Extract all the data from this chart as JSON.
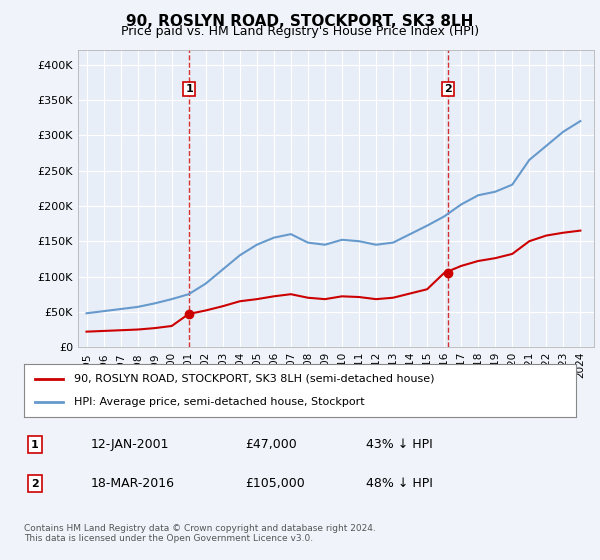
{
  "title": "90, ROSLYN ROAD, STOCKPORT, SK3 8LH",
  "subtitle": "Price paid vs. HM Land Registry's House Price Index (HPI)",
  "xlabel": "",
  "ylabel": "",
  "ylim": [
    0,
    420000
  ],
  "yticks": [
    0,
    50000,
    100000,
    150000,
    200000,
    250000,
    300000,
    350000,
    400000
  ],
  "ytick_labels": [
    "£0",
    "£50K",
    "£100K",
    "£150K",
    "£200K",
    "£250K",
    "£300K",
    "£350K",
    "£400K"
  ],
  "background_color": "#e8eef7",
  "plot_bg_color": "#e8eef7",
  "grid_color": "#ffffff",
  "red_line_color": "#cc0000",
  "blue_line_color": "#6699cc",
  "marker_color": "#cc0000",
  "annotation_box_color": "#cc0000",
  "annotation_line_color": "#cc0000",
  "sale1_date_idx": 6.08,
  "sale1_price": 47000,
  "sale1_label": "1",
  "sale2_date_idx": 21.2,
  "sale2_price": 105000,
  "sale2_label": "2",
  "legend_entry1": "90, ROSLYN ROAD, STOCKPORT, SK3 8LH (semi-detached house)",
  "legend_entry2": "HPI: Average price, semi-detached house, Stockport",
  "annotation1_label": "1",
  "annotation1_date": "12-JAN-2001",
  "annotation1_price": "£47,000",
  "annotation1_pct": "43% ↓ HPI",
  "annotation2_label": "2",
  "annotation2_date": "18-MAR-2016",
  "annotation2_price": "£105,000",
  "annotation2_pct": "48% ↓ HPI",
  "footer": "Contains HM Land Registry data © Crown copyright and database right 2024.\nThis data is licensed under the Open Government Licence v3.0.",
  "hpi_years": [
    1995,
    1996,
    1997,
    1998,
    1999,
    2000,
    2001,
    2002,
    2003,
    2004,
    2005,
    2006,
    2007,
    2008,
    2009,
    2010,
    2011,
    2012,
    2013,
    2014,
    2015,
    2016,
    2017,
    2018,
    2019,
    2020,
    2021,
    2022,
    2023,
    2024
  ],
  "hpi_values": [
    48000,
    51000,
    54000,
    57000,
    62000,
    68000,
    75000,
    90000,
    110000,
    130000,
    145000,
    155000,
    160000,
    148000,
    145000,
    152000,
    150000,
    145000,
    148000,
    160000,
    172000,
    185000,
    202000,
    215000,
    220000,
    230000,
    265000,
    285000,
    305000,
    320000
  ],
  "red_years": [
    1995,
    1996,
    1997,
    1998,
    1999,
    2000,
    2001,
    2002,
    2003,
    2004,
    2005,
    2006,
    2007,
    2008,
    2009,
    2010,
    2011,
    2012,
    2013,
    2014,
    2015,
    2016,
    2017,
    2018,
    2019,
    2020,
    2021,
    2022,
    2023,
    2024
  ],
  "red_values": [
    22000,
    23000,
    24000,
    25000,
    27000,
    30000,
    47000,
    52000,
    58000,
    65000,
    68000,
    72000,
    75000,
    70000,
    68000,
    72000,
    71000,
    68000,
    70000,
    76000,
    82000,
    105000,
    115000,
    122000,
    126000,
    132000,
    150000,
    158000,
    162000,
    165000
  ]
}
